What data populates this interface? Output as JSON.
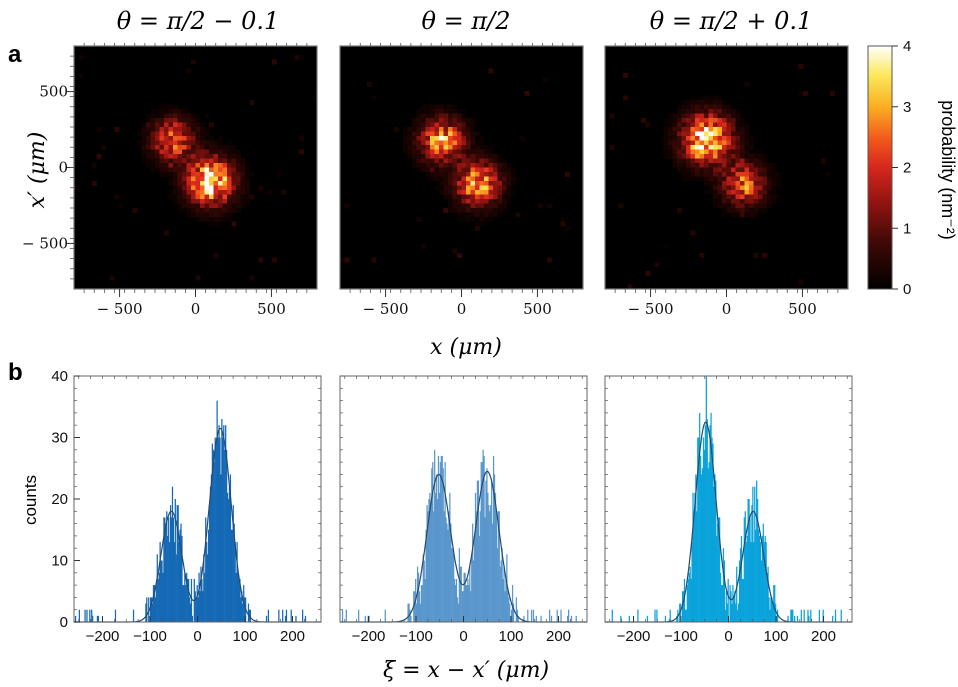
{
  "figure": {
    "panel_a_label": "a",
    "panel_b_label": "b"
  },
  "chart_data": [
    {
      "type": "heatmap",
      "panel": "a",
      "title": "θ = π/2 − 0.1",
      "xlabel": "x (μm)",
      "ylabel": "x′ (μm)",
      "xlim": [
        -800,
        800
      ],
      "ylim": [
        -800,
        800
      ],
      "xticks": [
        "− 500",
        "0",
        "500"
      ],
      "yticks": [
        "500",
        "0",
        "− 500"
      ],
      "blobs": [
        {
          "x": -150,
          "y": 180,
          "sigma": 95,
          "peak": 2.6
        },
        {
          "x": 100,
          "y": -90,
          "sigma": 105,
          "peak": 4.0
        }
      ]
    },
    {
      "type": "heatmap",
      "panel": "a",
      "title": "θ = π/2",
      "xlabel": "x (μm)",
      "xlim": [
        -800,
        800
      ],
      "ylim": [
        -800,
        800
      ],
      "xticks": [
        "− 500",
        "0",
        "500"
      ],
      "blobs": [
        {
          "x": -130,
          "y": 175,
          "sigma": 100,
          "peak": 3.1
        },
        {
          "x": 110,
          "y": -110,
          "sigma": 100,
          "peak": 3.1
        }
      ]
    },
    {
      "type": "heatmap",
      "panel": "a",
      "title": "θ = π/2 + 0.1",
      "xlabel": "x (μm)",
      "xlim": [
        -800,
        800
      ],
      "ylim": [
        -800,
        800
      ],
      "xticks": [
        "− 500",
        "0",
        "500"
      ],
      "blobs": [
        {
          "x": -130,
          "y": 185,
          "sigma": 110,
          "peak": 4.0
        },
        {
          "x": 110,
          "y": -110,
          "sigma": 95,
          "peak": 2.6
        }
      ]
    },
    {
      "type": "colorbar",
      "label": "probability (nm⁻²)",
      "range": [
        0,
        4
      ],
      "ticks": [
        "4",
        "3",
        "2",
        "1",
        "0"
      ]
    },
    {
      "type": "bar",
      "panel": "b",
      "xlabel": "ξ = x − x′ (μm)",
      "ylabel": "counts",
      "xlim": [
        -260,
        260
      ],
      "ylim": [
        0,
        40
      ],
      "xticks": [
        "−200",
        "−100",
        "0",
        "100",
        "200"
      ],
      "yticks": [
        "0",
        "10",
        "20",
        "30",
        "40"
      ],
      "color": "#1569b5",
      "peaks": [
        {
          "center": -55,
          "sigma": 22,
          "amplitude": 18
        },
        {
          "center": 48,
          "sigma": 23,
          "amplitude": 31.5
        }
      ]
    },
    {
      "type": "bar",
      "panel": "b",
      "xlabel": "ξ = x − x′ (μm)",
      "xlim": [
        -260,
        260
      ],
      "ylim": [
        0,
        40
      ],
      "xticks": [
        "−200",
        "−100",
        "0",
        "100",
        "200"
      ],
      "color": "#5a97cc",
      "peaks": [
        {
          "center": -52,
          "sigma": 25,
          "amplitude": 24
        },
        {
          "center": 50,
          "sigma": 25,
          "amplitude": 24.5
        }
      ]
    },
    {
      "type": "bar",
      "panel": "b",
      "xlabel": "ξ = x − x′ (μm)",
      "xlim": [
        -260,
        260
      ],
      "ylim": [
        0,
        40
      ],
      "xticks": [
        "−200",
        "−100",
        "0",
        "100",
        "200"
      ],
      "color": "#0aa3db",
      "peaks": [
        {
          "center": -48,
          "sigma": 22,
          "amplitude": 32.5
        },
        {
          "center": 52,
          "sigma": 22,
          "amplitude": 18
        }
      ]
    }
  ]
}
